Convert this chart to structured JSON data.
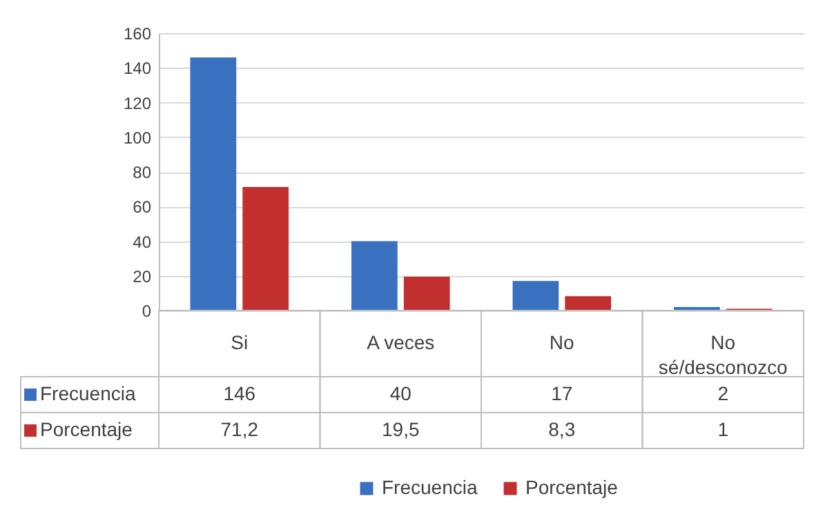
{
  "chart_data": {
    "type": "bar",
    "categories": [
      "Si",
      "A veces",
      "No",
      "No sé/desconozco"
    ],
    "series": [
      {
        "name": "Frecuencia",
        "color": "#3a70c0",
        "values": [
          146,
          40,
          17,
          2
        ],
        "value_labels": [
          "146",
          "40",
          "17",
          "2"
        ]
      },
      {
        "name": "Porcentaje",
        "color": "#c22f2f",
        "values": [
          71.2,
          19.5,
          8.3,
          1
        ],
        "value_labels": [
          "71,2",
          "19,5",
          "8,3",
          "1"
        ]
      }
    ],
    "ylim": [
      0,
      160
    ],
    "yticks": [
      0,
      20,
      40,
      60,
      80,
      100,
      120,
      140,
      160
    ],
    "grid": "y",
    "legend": "bottom"
  }
}
